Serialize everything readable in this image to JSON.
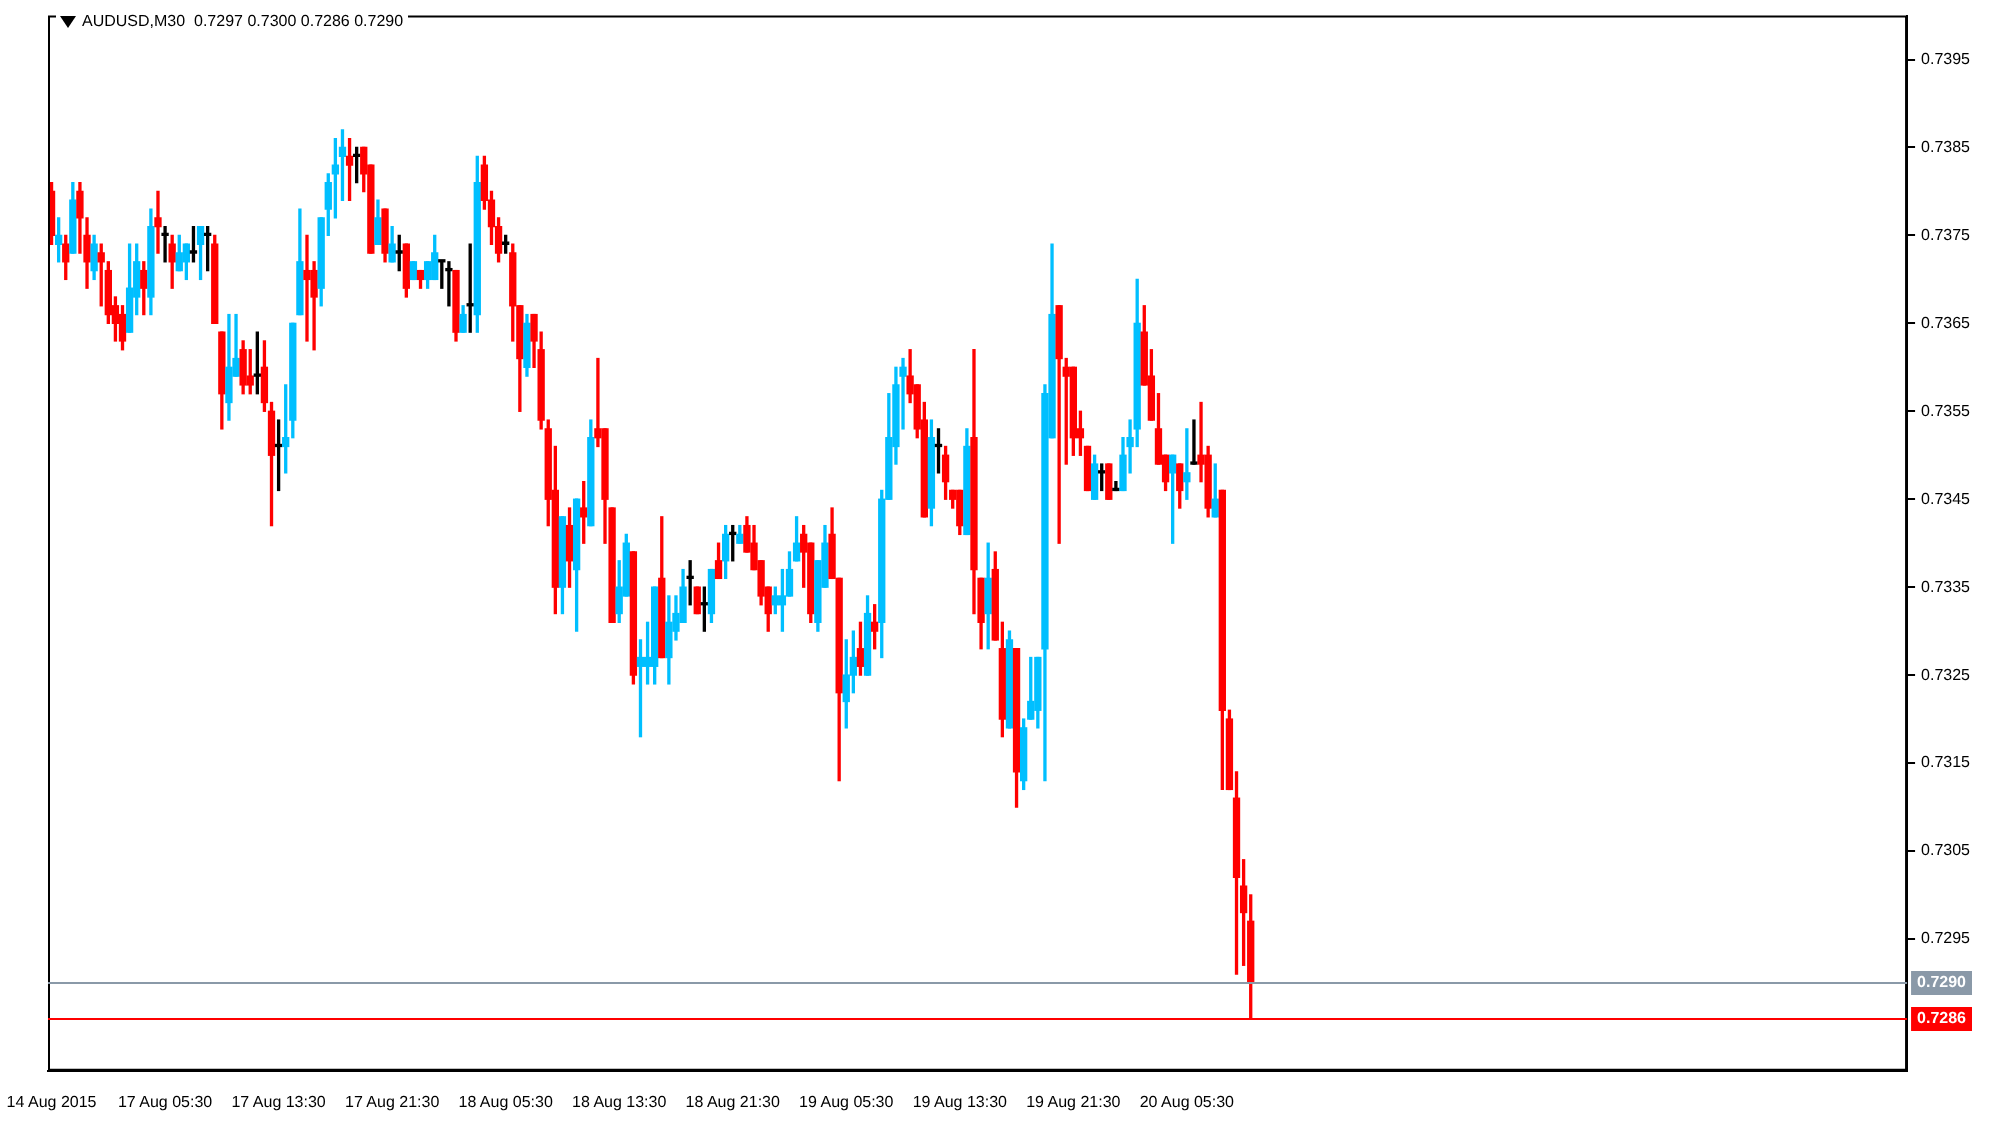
{
  "chart_data": {
    "type": "candlestick",
    "title": "AUDUSD,M30  0.7297 0.7300 0.7286 0.7290",
    "categories": [
      "14 Aug 2015",
      null,
      null,
      null,
      null,
      null,
      null,
      null,
      null,
      null,
      null,
      null,
      null,
      null,
      null,
      null,
      "17 Aug 05:30",
      null,
      null,
      null,
      null,
      null,
      null,
      null,
      null,
      null,
      null,
      null,
      null,
      null,
      null,
      null,
      "17 Aug 13:30",
      null,
      null,
      null,
      null,
      null,
      null,
      null,
      null,
      null,
      null,
      null,
      null,
      null,
      null,
      null,
      "17 Aug 21:30",
      null,
      null,
      null,
      null,
      null,
      null,
      null,
      null,
      null,
      null,
      null,
      null,
      null,
      null,
      null,
      "18 Aug 05:30",
      null,
      null,
      null,
      null,
      null,
      null,
      null,
      null,
      null,
      null,
      null,
      null,
      null,
      null,
      null,
      "18 Aug 13:30",
      null,
      null,
      null,
      null,
      null,
      null,
      null,
      null,
      null,
      null,
      null,
      null,
      null,
      null,
      null,
      "18 Aug 21:30",
      null,
      null,
      null,
      null,
      null,
      null,
      null,
      null,
      null,
      null,
      null,
      null,
      null,
      null,
      null,
      "19 Aug 05:30",
      null,
      null,
      null,
      null,
      null,
      null,
      null,
      null,
      null,
      null,
      null,
      null,
      null,
      null,
      null,
      "19 Aug 13:30",
      null,
      null,
      null,
      null,
      null,
      null,
      null,
      null,
      null,
      null,
      null,
      null,
      null,
      null,
      null,
      "19 Aug 21:30",
      null,
      null,
      null,
      null,
      null,
      null,
      null,
      null,
      null,
      null,
      null,
      null,
      null,
      null,
      null,
      "20 Aug 05:30",
      null,
      null,
      null,
      null,
      null,
      null,
      null,
      null,
      null,
      null,
      null,
      null,
      null,
      null,
      null,
      null,
      null,
      null,
      null,
      null,
      null,
      null,
      null,
      null,
      null,
      null,
      null,
      null,
      null,
      null,
      null,
      null,
      null,
      null,
      null,
      null,
      null,
      null,
      null,
      null,
      null,
      null,
      null,
      null,
      null,
      null,
      null,
      null,
      null,
      null,
      null,
      null,
      null,
      null,
      null,
      null,
      null,
      null,
      null,
      null,
      null,
      null,
      null,
      null,
      null,
      null,
      null,
      null,
      null,
      null,
      null,
      null,
      null,
      null,
      null,
      null,
      null,
      null,
      null,
      null,
      null,
      null,
      null,
      null,
      null,
      null,
      null,
      null,
      null,
      null,
      null,
      null,
      null,
      null,
      null,
      null,
      null,
      null,
      null,
      null,
      null
    ],
    "ohlc": [
      [
        0.738,
        0.7381,
        0.7374,
        0.7375
      ],
      [
        0.7374,
        0.7377,
        0.7372,
        0.7375
      ],
      [
        0.7374,
        0.7375,
        0.737,
        0.7372
      ],
      [
        0.7373,
        0.7381,
        0.7373,
        0.7379
      ],
      [
        0.738,
        0.7381,
        0.7373,
        0.7377
      ],
      [
        0.7375,
        0.7377,
        0.7369,
        0.7372
      ],
      [
        0.7371,
        0.7375,
        0.737,
        0.7374
      ],
      [
        0.7373,
        0.7374,
        0.7367,
        0.7372
      ],
      [
        0.7371,
        0.7372,
        0.7365,
        0.7366
      ],
      [
        0.7367,
        0.7368,
        0.7363,
        0.7365
      ],
      [
        0.7366,
        0.7367,
        0.7362,
        0.7363
      ],
      [
        0.7364,
        0.7374,
        0.7364,
        0.7369
      ],
      [
        0.7368,
        0.7374,
        0.7366,
        0.7372
      ],
      [
        0.7371,
        0.7372,
        0.7366,
        0.7369
      ],
      [
        0.7368,
        0.7378,
        0.7366,
        0.7376
      ],
      [
        0.7377,
        0.738,
        0.7373,
        0.7376
      ],
      [
        0.7375,
        0.7376,
        0.7372,
        0.7375
      ],
      [
        0.7374,
        0.7375,
        0.7369,
        0.7372
      ],
      [
        0.7371,
        0.7375,
        0.7371,
        0.7373
      ],
      [
        0.7372,
        0.7374,
        0.737,
        0.7374
      ],
      [
        0.7373,
        0.7376,
        0.7372,
        0.7373
      ],
      [
        0.7374,
        0.7376,
        0.737,
        0.7376
      ],
      [
        0.7375,
        0.7376,
        0.7371,
        0.7375
      ],
      [
        0.7374,
        0.7375,
        0.7365,
        0.7365
      ],
      [
        0.7364,
        0.7364,
        0.7353,
        0.7357
      ],
      [
        0.7356,
        0.7366,
        0.7354,
        0.736
      ],
      [
        0.7359,
        0.7366,
        0.7359,
        0.7361
      ],
      [
        0.7362,
        0.7363,
        0.7357,
        0.7358
      ],
      [
        0.7359,
        0.7362,
        0.7357,
        0.7358
      ],
      [
        0.7359,
        0.7364,
        0.7357,
        0.7359
      ],
      [
        0.736,
        0.7363,
        0.7355,
        0.7356
      ],
      [
        0.7355,
        0.7356,
        0.7342,
        0.735
      ],
      [
        0.7351,
        0.7354,
        0.7346,
        0.7351
      ],
      [
        0.7351,
        0.7358,
        0.7348,
        0.7352
      ],
      [
        0.7354,
        0.7365,
        0.7352,
        0.7365
      ],
      [
        0.7366,
        0.7378,
        0.7366,
        0.7372
      ],
      [
        0.7371,
        0.7375,
        0.7363,
        0.737
      ],
      [
        0.7371,
        0.7372,
        0.7362,
        0.7368
      ],
      [
        0.7369,
        0.7377,
        0.7367,
        0.7377
      ],
      [
        0.7378,
        0.7382,
        0.7375,
        0.7381
      ],
      [
        0.7382,
        0.7386,
        0.7377,
        0.7383
      ],
      [
        0.7384,
        0.7387,
        0.7379,
        0.7385
      ],
      [
        0.7384,
        0.7386,
        0.7379,
        0.7383
      ],
      [
        0.7384,
        0.7385,
        0.7381,
        0.7384
      ],
      [
        0.7385,
        0.7385,
        0.738,
        0.7382
      ],
      [
        0.7383,
        0.7383,
        0.7373,
        0.7373
      ],
      [
        0.7374,
        0.7379,
        0.7374,
        0.7377
      ],
      [
        0.7378,
        0.7378,
        0.7372,
        0.7373
      ],
      [
        0.7372,
        0.7376,
        0.7372,
        0.7374
      ],
      [
        0.7373,
        0.7375,
        0.7371,
        0.7373
      ],
      [
        0.7374,
        0.7374,
        0.7368,
        0.7369
      ],
      [
        0.737,
        0.7372,
        0.737,
        0.7372
      ],
      [
        0.7371,
        0.7371,
        0.7369,
        0.737
      ],
      [
        0.737,
        0.7372,
        0.7369,
        0.7372
      ],
      [
        0.737,
        0.7375,
        0.737,
        0.7373
      ],
      [
        0.7372,
        0.7372,
        0.7369,
        0.7372
      ],
      [
        0.7371,
        0.7372,
        0.7367,
        0.7371
      ],
      [
        0.7371,
        0.7371,
        0.7363,
        0.7364
      ],
      [
        0.7364,
        0.7367,
        0.7364,
        0.7366
      ],
      [
        0.7367,
        0.7374,
        0.7364,
        0.7367
      ],
      [
        0.7366,
        0.7384,
        0.7364,
        0.7381
      ],
      [
        0.7383,
        0.7384,
        0.7378,
        0.7379
      ],
      [
        0.7379,
        0.738,
        0.7374,
        0.7376
      ],
      [
        0.7376,
        0.7377,
        0.7372,
        0.7373
      ],
      [
        0.7374,
        0.7375,
        0.7373,
        0.7374
      ],
      [
        0.7373,
        0.7374,
        0.7363,
        0.7367
      ],
      [
        0.7367,
        0.7367,
        0.7355,
        0.7361
      ],
      [
        0.736,
        0.7366,
        0.7359,
        0.7365
      ],
      [
        0.7366,
        0.7366,
        0.736,
        0.7363
      ],
      [
        0.7362,
        0.7364,
        0.7353,
        0.7354
      ],
      [
        0.7353,
        0.7354,
        0.7342,
        0.7345
      ],
      [
        0.7346,
        0.7351,
        0.7332,
        0.7335
      ],
      [
        0.7335,
        0.7343,
        0.7332,
        0.7343
      ],
      [
        0.7342,
        0.7344,
        0.7335,
        0.7338
      ],
      [
        0.7337,
        0.7345,
        0.733,
        0.7345
      ],
      [
        0.7344,
        0.7347,
        0.734,
        0.7343
      ],
      [
        0.7342,
        0.7354,
        0.7342,
        0.7352
      ],
      [
        0.7353,
        0.7361,
        0.7351,
        0.7352
      ],
      [
        0.7353,
        0.7353,
        0.734,
        0.7345
      ],
      [
        0.7344,
        0.7344,
        0.7331,
        0.7331
      ],
      [
        0.7332,
        0.7338,
        0.7331,
        0.7335
      ],
      [
        0.7334,
        0.7341,
        0.7334,
        0.734
      ],
      [
        0.7339,
        0.7339,
        0.7324,
        0.7325
      ],
      [
        0.7326,
        0.7329,
        0.7318,
        0.7327
      ],
      [
        0.7326,
        0.7331,
        0.7324,
        0.7327
      ],
      [
        0.7326,
        0.7335,
        0.7324,
        0.7335
      ],
      [
        0.7336,
        0.7343,
        0.7327,
        0.7327
      ],
      [
        0.7327,
        0.7334,
        0.7324,
        0.7331
      ],
      [
        0.733,
        0.7334,
        0.7329,
        0.7332
      ],
      [
        0.7331,
        0.7337,
        0.7331,
        0.7335
      ],
      [
        0.7336,
        0.7338,
        0.7333,
        0.7336
      ],
      [
        0.7335,
        0.7335,
        0.7332,
        0.7332
      ],
      [
        0.7333,
        0.7335,
        0.733,
        0.7333
      ],
      [
        0.7332,
        0.7337,
        0.7331,
        0.7337
      ],
      [
        0.7338,
        0.734,
        0.7336,
        0.7336
      ],
      [
        0.7338,
        0.7342,
        0.7336,
        0.7341
      ],
      [
        0.7341,
        0.7342,
        0.7338,
        0.7341
      ],
      [
        0.734,
        0.7342,
        0.734,
        0.7341
      ],
      [
        0.7342,
        0.7343,
        0.7339,
        0.7339
      ],
      [
        0.734,
        0.7342,
        0.7337,
        0.7337
      ],
      [
        0.7338,
        0.7338,
        0.7333,
        0.7334
      ],
      [
        0.7335,
        0.7335,
        0.733,
        0.7332
      ],
      [
        0.7333,
        0.7335,
        0.7332,
        0.7334
      ],
      [
        0.7333,
        0.7337,
        0.733,
        0.7334
      ],
      [
        0.7334,
        0.7339,
        0.7334,
        0.7337
      ],
      [
        0.7338,
        0.7343,
        0.7338,
        0.734
      ],
      [
        0.7341,
        0.7342,
        0.7335,
        0.7339
      ],
      [
        0.734,
        0.734,
        0.7331,
        0.7332
      ],
      [
        0.7331,
        0.7338,
        0.733,
        0.7338
      ],
      [
        0.7335,
        0.7342,
        0.7335,
        0.734
      ],
      [
        0.7341,
        0.7344,
        0.7336,
        0.7336
      ],
      [
        0.7336,
        0.7336,
        0.7313,
        0.7323
      ],
      [
        0.7322,
        0.7329,
        0.7319,
        0.7325
      ],
      [
        0.7325,
        0.733,
        0.7323,
        0.7327
      ],
      [
        0.7328,
        0.7331,
        0.7325,
        0.7326
      ],
      [
        0.7325,
        0.7334,
        0.7325,
        0.7332
      ],
      [
        0.7331,
        0.7333,
        0.7328,
        0.733
      ],
      [
        0.7331,
        0.7346,
        0.7327,
        0.7345
      ],
      [
        0.7345,
        0.7357,
        0.7345,
        0.7352
      ],
      [
        0.7351,
        0.736,
        0.7349,
        0.7358
      ],
      [
        0.7359,
        0.7361,
        0.7353,
        0.736
      ],
      [
        0.7359,
        0.7362,
        0.7356,
        0.7357
      ],
      [
        0.7358,
        0.7358,
        0.7352,
        0.7353
      ],
      [
        0.7354,
        0.7356,
        0.7343,
        0.7343
      ],
      [
        0.7344,
        0.7354,
        0.7342,
        0.7352
      ],
      [
        0.7351,
        0.7353,
        0.7348,
        0.7351
      ],
      [
        0.735,
        0.7351,
        0.7345,
        0.7347
      ],
      [
        0.7346,
        0.7346,
        0.7344,
        0.7345
      ],
      [
        0.7346,
        0.7346,
        0.7341,
        0.7342
      ],
      [
        0.7341,
        0.7353,
        0.7341,
        0.7351
      ],
      [
        0.7352,
        0.7362,
        0.7332,
        0.7337
      ],
      [
        0.7336,
        0.7336,
        0.7328,
        0.7331
      ],
      [
        0.7332,
        0.734,
        0.7328,
        0.7336
      ],
      [
        0.7337,
        0.7339,
        0.7329,
        0.7329
      ],
      [
        0.7328,
        0.7331,
        0.7318,
        0.732
      ],
      [
        0.7319,
        0.733,
        0.7319,
        0.7329
      ],
      [
        0.7328,
        0.7328,
        0.731,
        0.7314
      ],
      [
        0.7313,
        0.732,
        0.7312,
        0.7319
      ],
      [
        0.732,
        0.7327,
        0.732,
        0.7322
      ],
      [
        0.7321,
        0.7327,
        0.7319,
        0.7327
      ],
      [
        0.7328,
        0.7358,
        0.7313,
        0.7357
      ],
      [
        0.7352,
        0.7374,
        0.7352,
        0.7366
      ],
      [
        0.7367,
        0.7367,
        0.734,
        0.7361
      ],
      [
        0.736,
        0.7361,
        0.7349,
        0.7359
      ],
      [
        0.736,
        0.736,
        0.735,
        0.7352
      ],
      [
        0.7353,
        0.7355,
        0.735,
        0.7352
      ],
      [
        0.7351,
        0.7351,
        0.7346,
        0.7346
      ],
      [
        0.7345,
        0.735,
        0.7345,
        0.7349
      ],
      [
        0.7348,
        0.7349,
        0.7346,
        0.7348
      ],
      [
        0.7349,
        0.7349,
        0.7345,
        0.7345
      ],
      [
        0.7346,
        0.7347,
        0.7346,
        0.7346
      ],
      [
        0.7346,
        0.7352,
        0.7346,
        0.735
      ],
      [
        0.7351,
        0.7354,
        0.7348,
        0.7352
      ],
      [
        0.7353,
        0.737,
        0.7351,
        0.7365
      ],
      [
        0.7364,
        0.7367,
        0.7358,
        0.7358
      ],
      [
        0.7359,
        0.7362,
        0.7354,
        0.7354
      ],
      [
        0.7353,
        0.7357,
        0.7349,
        0.7349
      ],
      [
        0.735,
        0.735,
        0.7346,
        0.7347
      ],
      [
        0.7348,
        0.735,
        0.734,
        0.735
      ],
      [
        0.7349,
        0.7349,
        0.7344,
        0.7346
      ],
      [
        0.7347,
        0.7353,
        0.7345,
        0.7348
      ],
      [
        0.7349,
        0.7354,
        0.7349,
        0.7349
      ],
      [
        0.735,
        0.7356,
        0.7347,
        0.7349
      ],
      [
        0.735,
        0.7351,
        0.7343,
        0.7344
      ],
      [
        0.7343,
        0.7349,
        0.7343,
        0.7345
      ],
      [
        0.7346,
        0.7346,
        0.7312,
        0.7321
      ],
      [
        0.732,
        0.7321,
        0.7312,
        0.7312
      ],
      [
        0.7311,
        0.7314,
        0.7291,
        0.7302
      ],
      [
        0.7301,
        0.7304,
        0.7292,
        0.7298
      ],
      [
        0.7297,
        0.73,
        0.7286,
        0.729
      ],
      null,
      null,
      null,
      null,
      null,
      null,
      null,
      null,
      null,
      null,
      null,
      null,
      null,
      null,
      null,
      null,
      null,
      null,
      null,
      null,
      null,
      null,
      null,
      null,
      null,
      null,
      null,
      null,
      null,
      null,
      null,
      null,
      null,
      null,
      null,
      null,
      null,
      null,
      null,
      null,
      null,
      null,
      null,
      null,
      null,
      null,
      null,
      null,
      null,
      null,
      null,
      null,
      null,
      null,
      null,
      null,
      null,
      null,
      null,
      null,
      null,
      null,
      null,
      null,
      null,
      null,
      null,
      null,
      null,
      null,
      null,
      null,
      null,
      null,
      null,
      null,
      null,
      null,
      null,
      null,
      null,
      null,
      null,
      null,
      null,
      null,
      null,
      null,
      null,
      null,
      null,
      null
    ],
    "colors": [
      "#ff0000",
      "#00bfff",
      "#ff0000",
      "#00bfff",
      "#ff0000",
      "#ff0000",
      "#00bfff",
      "#ff0000",
      "#ff0000",
      "#ff0000",
      "#ff0000",
      "#00bfff",
      "#00bfff",
      "#ff0000",
      "#00bfff",
      "#ff0000",
      "#000000",
      "#ff0000",
      "#00bfff",
      "#00bfff",
      "#000000",
      "#00bfff",
      "#000000",
      "#ff0000",
      "#ff0000",
      "#00bfff",
      "#00bfff",
      "#ff0000",
      "#ff0000",
      "#000000",
      "#ff0000",
      "#ff0000",
      "#000000",
      "#00bfff",
      "#00bfff",
      "#00bfff",
      "#ff0000",
      "#ff0000",
      "#00bfff",
      "#00bfff",
      "#00bfff",
      "#00bfff",
      "#ff0000",
      "#000000",
      "#ff0000",
      "#ff0000",
      "#00bfff",
      "#ff0000",
      "#00bfff",
      "#000000",
      "#ff0000",
      "#00bfff",
      "#ff0000",
      "#00bfff",
      "#00bfff",
      "#000000",
      "#000000",
      "#ff0000",
      "#00bfff",
      "#000000",
      "#00bfff",
      "#ff0000",
      "#ff0000",
      "#ff0000",
      "#000000",
      "#ff0000",
      "#ff0000",
      "#00bfff",
      "#ff0000",
      "#ff0000",
      "#ff0000",
      "#ff0000",
      "#00bfff",
      "#ff0000",
      "#00bfff",
      "#ff0000",
      "#00bfff",
      "#ff0000",
      "#ff0000",
      "#ff0000",
      "#00bfff",
      "#00bfff",
      "#ff0000",
      "#00bfff",
      "#00bfff",
      "#00bfff",
      "#ff0000",
      "#00bfff",
      "#00bfff",
      "#00bfff",
      "#000000",
      "#ff0000",
      "#000000",
      "#00bfff",
      "#ff0000",
      "#00bfff",
      "#000000",
      "#00bfff",
      "#ff0000",
      "#ff0000",
      "#ff0000",
      "#ff0000",
      "#00bfff",
      "#00bfff",
      "#00bfff",
      "#00bfff",
      "#ff0000",
      "#ff0000",
      "#00bfff",
      "#00bfff",
      "#ff0000",
      "#ff0000",
      "#00bfff",
      "#00bfff",
      "#ff0000",
      "#00bfff",
      "#ff0000",
      "#00bfff",
      "#00bfff",
      "#00bfff",
      "#00bfff",
      "#ff0000",
      "#ff0000",
      "#ff0000",
      "#00bfff",
      "#000000",
      "#ff0000",
      "#ff0000",
      "#ff0000",
      "#00bfff",
      "#ff0000",
      "#ff0000",
      "#00bfff",
      "#ff0000",
      "#ff0000",
      "#00bfff",
      "#ff0000",
      "#00bfff",
      "#00bfff",
      "#00bfff",
      "#00bfff",
      "#00bfff",
      "#ff0000",
      "#ff0000",
      "#ff0000",
      "#ff0000",
      "#ff0000",
      "#00bfff",
      "#000000",
      "#ff0000",
      "#000000",
      "#00bfff",
      "#00bfff",
      "#00bfff",
      "#ff0000",
      "#ff0000",
      "#ff0000",
      "#ff0000",
      "#00bfff",
      "#ff0000",
      "#00bfff",
      "#000000",
      "#ff0000",
      "#ff0000",
      "#00bfff",
      "#ff0000",
      "#ff0000",
      "#ff0000",
      "#ff0000",
      "#ff0000",
      null,
      null,
      null,
      null,
      null,
      null,
      null,
      null,
      null,
      null,
      null,
      null,
      null,
      null,
      null,
      null,
      null,
      null,
      null,
      null,
      null,
      null,
      null,
      null,
      null,
      null,
      null,
      null,
      null,
      null,
      null,
      null,
      null,
      null,
      null,
      null,
      null,
      null,
      null,
      null,
      null,
      null,
      null,
      null,
      null,
      null,
      null,
      null,
      null,
      null,
      null,
      null,
      null,
      null,
      null,
      null,
      null,
      null,
      null,
      null,
      null,
      null,
      null,
      null,
      null,
      null,
      null,
      null,
      null,
      null,
      null,
      null,
      null,
      null,
      null,
      null,
      null,
      null,
      null,
      null,
      null,
      null,
      null,
      null,
      null,
      null,
      null,
      null,
      null,
      null,
      null,
      null
    ],
    "ylim": [
      0.728,
      0.74
    ],
    "yticks": [
      0.7295,
      0.7305,
      0.7315,
      0.7325,
      0.7335,
      0.7345,
      0.7355,
      0.7365,
      0.7375,
      0.7385,
      0.7395
    ],
    "ref_lines": [
      {
        "axis": "y",
        "value": 0.729,
        "label": "0.7290",
        "color": "#8a99a8"
      },
      {
        "axis": "y",
        "value": 0.7286,
        "label": "0.7286",
        "color": "#ff0000"
      }
    ],
    "grid": false,
    "legend": false
  }
}
